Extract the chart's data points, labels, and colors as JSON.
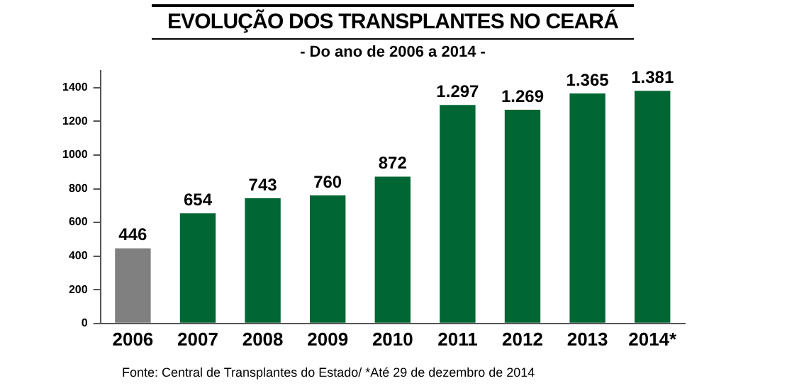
{
  "chart_data": {
    "type": "bar",
    "title": "EVOLUÇÃO DOS TRANSPLANTES NO CEARÁ",
    "subtitle": "- Do ano de 2006 a 2014 -",
    "categories": [
      "2006",
      "2007",
      "2008",
      "2009",
      "2010",
      "2011",
      "2012",
      "2013",
      "2014*"
    ],
    "values": [
      446,
      654,
      743,
      760,
      872,
      1297,
      1269,
      1365,
      1381
    ],
    "value_labels": [
      "446",
      "654",
      "743",
      "760",
      "872",
      "1.297",
      "1.269",
      "1.365",
      "1.381"
    ],
    "colors": [
      "#808080",
      "#006633",
      "#006633",
      "#006633",
      "#006633",
      "#006633",
      "#006633",
      "#006633",
      "#006633"
    ],
    "ylim": [
      0,
      1500
    ],
    "yticks": [
      0,
      200,
      400,
      600,
      800,
      1000,
      1200,
      1400
    ],
    "grid": false,
    "legend": false,
    "annotations": [
      "Fonte: Central de Transplantes do Estado/  *Até 29 de dezembro de 2014"
    ]
  }
}
